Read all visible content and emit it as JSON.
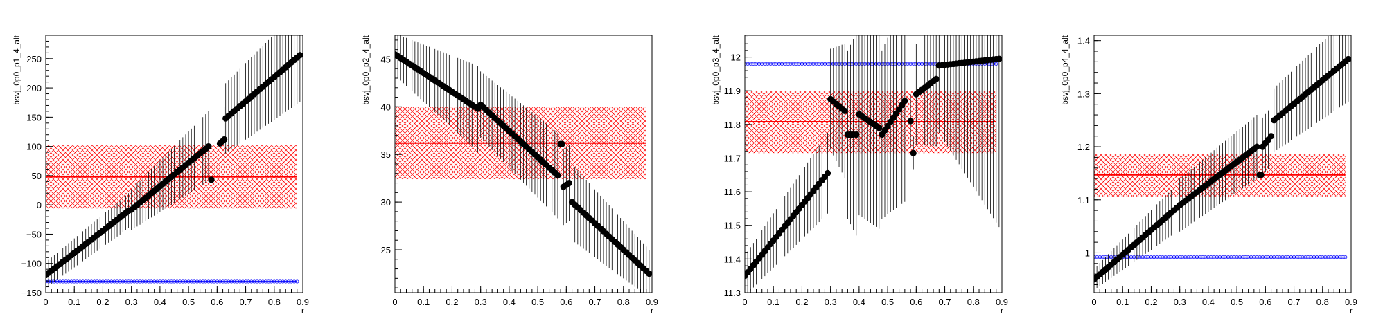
{
  "colors": {
    "points": "#000000",
    "band_fill": "#ff0000",
    "band_line": "#ff0000",
    "ref_line": "#0000ff"
  },
  "icons": {
    "marker": "filled-circle",
    "band_pattern": "crosshatch",
    "ref_marker": "open-circle"
  },
  "chart_data": [
    {
      "type": "scatter",
      "title": "",
      "xlabel": "r",
      "ylabel": "bsvj_0p0_p1_4_alt",
      "xlim": [
        0,
        0.9
      ],
      "ylim": [
        -150,
        290
      ],
      "xticks": [
        0,
        0.1,
        0.2,
        0.3,
        0.4,
        0.5,
        0.6,
        0.7,
        0.8,
        0.9
      ],
      "xtick_labels": [
        "0",
        "0.1",
        "0.2",
        "0.3",
        "0.4",
        "0.5",
        "0.6",
        "0.7",
        "0.8",
        "0.9"
      ],
      "yticks": [
        -150,
        -100,
        -50,
        0,
        50,
        100,
        150,
        200,
        250
      ],
      "ytick_labels": [
        "−150",
        "−100",
        "−50",
        "0",
        "50",
        "100",
        "150",
        "200",
        "250"
      ],
      "grid": false,
      "segments": [
        {
          "x0": 0.0,
          "x1": 0.29,
          "y0": -120,
          "y1": -10,
          "err0": 22,
          "err1": 30
        },
        {
          "x0": 0.3,
          "x1": 0.57,
          "y0": -8,
          "y1": 100,
          "err0": 35,
          "err1": 60
        },
        {
          "x0": 0.61,
          "x1": 0.625,
          "y0": 105,
          "y1": 112,
          "err0": 55,
          "err1": 55
        },
        {
          "x0": 0.63,
          "x1": 0.89,
          "y0": 148,
          "y1": 256,
          "err0": 60,
          "err1": 80
        }
      ],
      "outliers": [
        {
          "x": 0.58,
          "y": 43,
          "err": 3
        }
      ],
      "band": {
        "x0": 0.0,
        "x1": 0.88,
        "center": 48,
        "lo": -6,
        "hi": 102
      },
      "ref": {
        "x0": 0.0,
        "x1": 0.88,
        "y": -131
      }
    },
    {
      "type": "scatter",
      "title": "",
      "xlabel": "r",
      "ylabel": "bsvj_0p0_p2_4_alt",
      "xlim": [
        0,
        0.9
      ],
      "ylim": [
        20.5,
        47.5
      ],
      "xticks": [
        0,
        0.1,
        0.2,
        0.3,
        0.4,
        0.5,
        0.6,
        0.7,
        0.8,
        0.9
      ],
      "xtick_labels": [
        "0",
        "0.1",
        "0.2",
        "0.3",
        "0.4",
        "0.5",
        "0.6",
        "0.7",
        "0.8",
        "0.9"
      ],
      "yticks": [
        25,
        30,
        35,
        40,
        45
      ],
      "ytick_labels": [
        "25",
        "30",
        "35",
        "40",
        "45"
      ],
      "grid": false,
      "segments": [
        {
          "x0": 0.0,
          "x1": 0.29,
          "y0": 45.5,
          "y1": 39.8,
          "err0": 2.2,
          "err1": 4.5
        },
        {
          "x0": 0.3,
          "x1": 0.57,
          "y0": 40.2,
          "y1": 32.8,
          "err0": 3.5,
          "err1": 4.5
        },
        {
          "x0": 0.59,
          "x1": 0.61,
          "y0": 31.6,
          "y1": 32.0,
          "err0": 4.0,
          "err1": 4.0
        },
        {
          "x0": 0.62,
          "x1": 0.89,
          "y0": 30.0,
          "y1": 22.5,
          "err0": 4.0,
          "err1": 2.5
        }
      ],
      "outliers": [
        {
          "x": 0.58,
          "y": 36.1,
          "err": 0.3
        },
        {
          "x": 0.585,
          "y": 36.1,
          "err": 0.3
        }
      ],
      "band": {
        "x0": 0.0,
        "x1": 0.88,
        "center": 36.2,
        "lo": 32.4,
        "hi": 40.0
      },
      "ref": null
    },
    {
      "type": "scatter",
      "title": "",
      "xlabel": "r",
      "ylabel": "bsvj_0p0_p3_4_alt",
      "xlim": [
        0,
        0.9
      ],
      "ylim": [
        11.3,
        12.065
      ],
      "xticks": [
        0,
        0.1,
        0.2,
        0.3,
        0.4,
        0.5,
        0.6,
        0.7,
        0.8,
        0.9
      ],
      "xtick_labels": [
        "0",
        "0.1",
        "0.2",
        "0.3",
        "0.4",
        "0.5",
        "0.6",
        "0.7",
        "0.8",
        "0.9"
      ],
      "yticks": [
        11.3,
        11.4,
        11.5,
        11.6,
        11.7,
        11.8,
        11.9,
        12
      ],
      "ytick_labels": [
        "11.3",
        "11.4",
        "11.5",
        "11.6",
        "11.7",
        "11.8",
        "11.9",
        "12"
      ],
      "grid": false,
      "segments": [
        {
          "x0": 0.0,
          "x1": 0.29,
          "y0": 11.35,
          "y1": 11.655,
          "err0": 0.06,
          "err1": 0.12
        },
        {
          "x0": 0.3,
          "x1": 0.35,
          "y0": 11.875,
          "y1": 11.84,
          "err0": 0.15,
          "err1": 0.2
        },
        {
          "x0": 0.36,
          "x1": 0.39,
          "y0": 11.77,
          "y1": 11.77,
          "err0": 0.25,
          "err1": 0.3
        },
        {
          "x0": 0.4,
          "x1": 0.47,
          "y0": 11.83,
          "y1": 11.79,
          "err0": 0.3,
          "err1": 0.3
        },
        {
          "x0": 0.48,
          "x1": 0.56,
          "y0": 11.77,
          "y1": 11.87,
          "err0": 0.25,
          "err1": 0.3
        },
        {
          "x0": 0.6,
          "x1": 0.67,
          "y0": 11.89,
          "y1": 11.935,
          "err0": 0.15,
          "err1": 0.2
        },
        {
          "x0": 0.68,
          "x1": 0.89,
          "y0": 11.975,
          "y1": 11.995,
          "err0": 0.2,
          "err1": 0.5
        }
      ],
      "outliers": [
        {
          "x": 0.58,
          "y": 11.81,
          "err": 0.08
        },
        {
          "x": 0.59,
          "y": 11.715,
          "err": 0.05
        }
      ],
      "band": {
        "x0": 0.0,
        "x1": 0.88,
        "center": 11.808,
        "lo": 11.715,
        "hi": 11.9
      },
      "ref": {
        "x0": 0.0,
        "x1": 0.88,
        "y": 11.98
      }
    },
    {
      "type": "scatter",
      "title": "",
      "xlabel": "r",
      "ylabel": "bsvj_0p0_p4_4_alt",
      "xlim": [
        0,
        0.9
      ],
      "ylim": [
        0.925,
        1.41
      ],
      "xticks": [
        0,
        0.1,
        0.2,
        0.3,
        0.4,
        0.5,
        0.6,
        0.7,
        0.8,
        0.9
      ],
      "xtick_labels": [
        "0",
        "0.1",
        "0.2",
        "0.3",
        "0.4",
        "0.5",
        "0.6",
        "0.7",
        "0.8",
        "0.9"
      ],
      "yticks": [
        1,
        1.1,
        1.2,
        1.3,
        1.4
      ],
      "ytick_labels": [
        "1",
        "1.1",
        "1.2",
        "1.3",
        "1.4"
      ],
      "grid": false,
      "segments": [
        {
          "x0": 0.0,
          "x1": 0.29,
          "y0": 0.95,
          "y1": 1.085,
          "err0": 0.02,
          "err1": 0.045
        },
        {
          "x0": 0.3,
          "x1": 0.57,
          "y0": 1.09,
          "y1": 1.2,
          "err0": 0.05,
          "err1": 0.06
        },
        {
          "x0": 0.59,
          "x1": 0.62,
          "y0": 1.2,
          "y1": 1.22,
          "err0": 0.055,
          "err1": 0.055
        },
        {
          "x0": 0.63,
          "x1": 0.89,
          "y0": 1.25,
          "y1": 1.365,
          "err0": 0.06,
          "err1": 0.08
        }
      ],
      "outliers": [
        {
          "x": 0.58,
          "y": 1.147,
          "err": 0.003
        },
        {
          "x": 0.585,
          "y": 1.147,
          "err": 0.003
        }
      ],
      "band": {
        "x0": 0.0,
        "x1": 0.88,
        "center": 1.147,
        "lo": 1.105,
        "hi": 1.187
      },
      "ref": {
        "x0": 0.0,
        "x1": 0.88,
        "y": 0.992
      }
    }
  ]
}
